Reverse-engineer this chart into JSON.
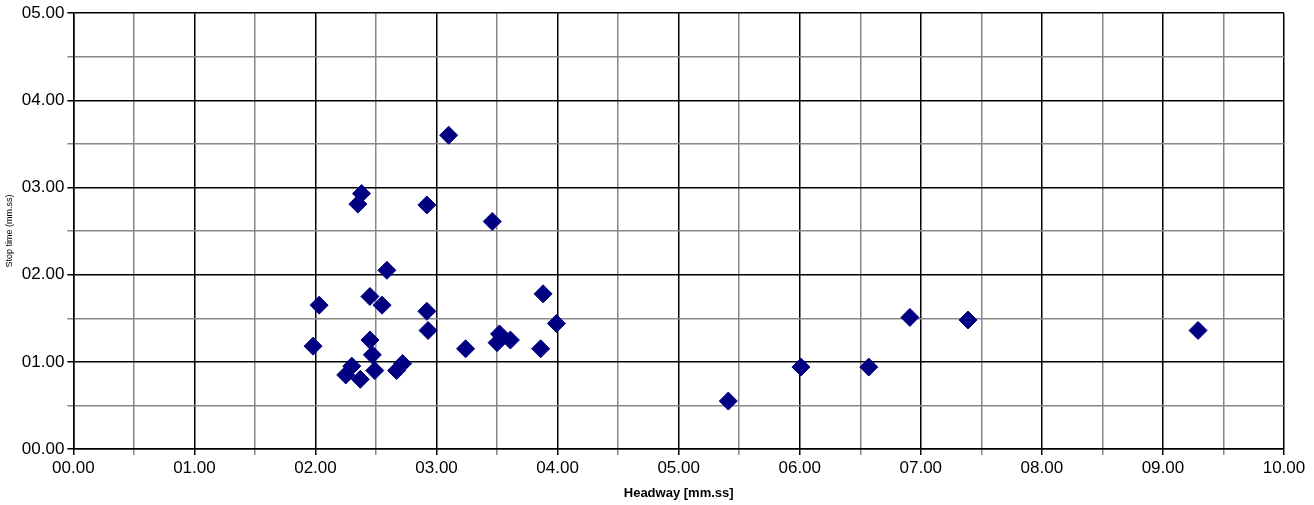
{
  "chart_data": {
    "type": "scatter",
    "xlabel": "Headway [mm.ss]",
    "ylabel": "Stop time (mm.ss)",
    "xlim": [
      0,
      10
    ],
    "ylim": [
      0,
      5
    ],
    "xticks": [
      {
        "value": 0,
        "label": "00.00"
      },
      {
        "value": 0.5,
        "label": null
      },
      {
        "value": 1,
        "label": "01.00"
      },
      {
        "value": 1.5,
        "label": null
      },
      {
        "value": 2,
        "label": "02.00"
      },
      {
        "value": 2.5,
        "label": null
      },
      {
        "value": 3,
        "label": "03.00"
      },
      {
        "value": 3.5,
        "label": null
      },
      {
        "value": 4,
        "label": "04.00"
      },
      {
        "value": 4.5,
        "label": null
      },
      {
        "value": 5,
        "label": "05.00"
      },
      {
        "value": 5.5,
        "label": null
      },
      {
        "value": 6,
        "label": "06.00"
      },
      {
        "value": 6.5,
        "label": null
      },
      {
        "value": 7,
        "label": "07.00"
      },
      {
        "value": 7.5,
        "label": null
      },
      {
        "value": 8,
        "label": "08.00"
      },
      {
        "value": 8.5,
        "label": null
      },
      {
        "value": 9,
        "label": "09.00"
      },
      {
        "value": 9.5,
        "label": null
      },
      {
        "value": 10,
        "label": "10.00"
      }
    ],
    "yticks": [
      {
        "value": 0,
        "label": "00.00"
      },
      {
        "value": 0.5,
        "label": null
      },
      {
        "value": 1,
        "label": "01.00"
      },
      {
        "value": 1.5,
        "label": null
      },
      {
        "value": 2,
        "label": "02.00"
      },
      {
        "value": 2.5,
        "label": null
      },
      {
        "value": 3,
        "label": "03.00"
      },
      {
        "value": 3.5,
        "label": null
      },
      {
        "value": 4,
        "label": "04.00"
      },
      {
        "value": 4.5,
        "label": null
      },
      {
        "value": 5,
        "label": "05.00"
      }
    ],
    "grid": true,
    "legend": false,
    "marker": "diamond",
    "series": [
      {
        "color": "#000080",
        "x": [
          1.98,
          2.03,
          2.25,
          2.3,
          2.37,
          2.35,
          2.38,
          2.45,
          2.45,
          2.47,
          2.49,
          2.55,
          2.59,
          2.67,
          2.72,
          2.92,
          2.92,
          2.93,
          3.1,
          3.24,
          3.46,
          3.5,
          3.52,
          3.61,
          3.86,
          3.88,
          3.99,
          5.41,
          6.01,
          6.57,
          6.91,
          7.39,
          9.29
        ],
        "values": [
          1.18,
          1.65,
          0.85,
          0.95,
          0.8,
          2.81,
          2.93,
          1.75,
          1.25,
          1.08,
          0.9,
          1.65,
          2.05,
          0.9,
          0.98,
          2.8,
          1.58,
          1.36,
          3.6,
          1.15,
          2.61,
          1.22,
          1.32,
          1.25,
          1.15,
          1.78,
          1.44,
          0.55,
          0.94,
          0.94,
          1.51,
          1.48,
          1.36
        ]
      }
    ]
  }
}
